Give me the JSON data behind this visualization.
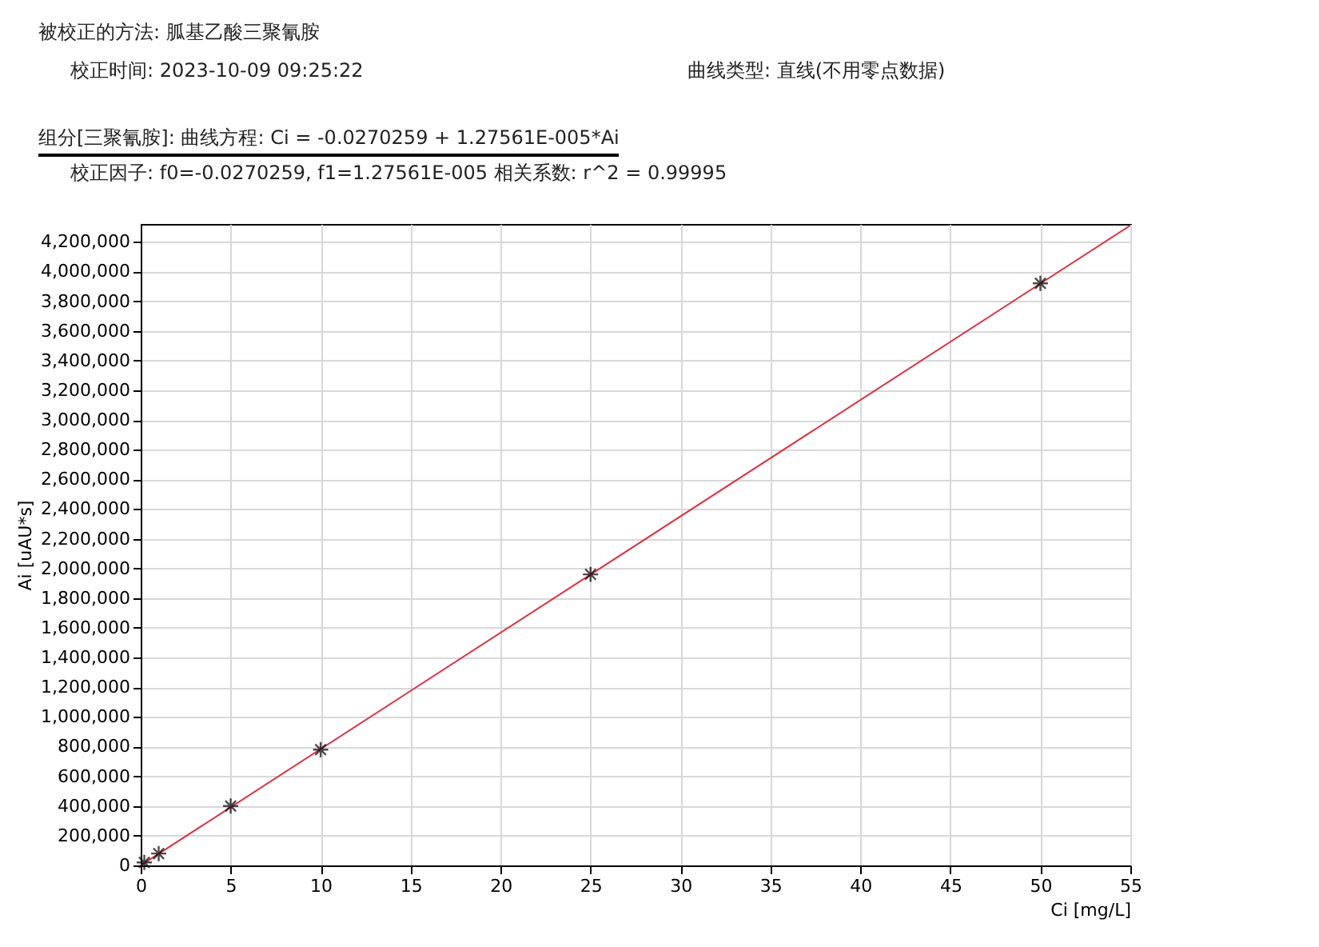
{
  "chart_data": {
    "type": "scatter",
    "title": "被校正的方法: 胍基乙酸三聚氰胺",
    "annotations": [
      "校正时间: 2023-10-09 09:25:22",
      "曲线类型: 直线(不用零点数据)",
      "组分[三聚氰胺]:  曲线方程: Ci = -0.0270259 + 1.27561E-005*Ai",
      "校正因子: f0=-0.0270259, f1=1.27561E-005   相关系数: r^2 = 0.99995"
    ],
    "xlabel": "Ci [mg/L]",
    "ylabel": "Ai [uAU*s]",
    "xlim": [
      0,
      55
    ],
    "xticks": [
      0,
      5,
      10,
      15,
      20,
      25,
      30,
      35,
      40,
      45,
      50,
      55
    ],
    "ylim": [
      0,
      4320000
    ],
    "yticks": [
      0,
      {
        "value": 200000,
        "label": "200,000"
      },
      {
        "value": 400000,
        "label": "400,000"
      },
      {
        "value": 600000,
        "label": "600,000"
      },
      {
        "value": 800000,
        "label": "800,000"
      },
      {
        "value": 1000000,
        "label": "1,000,000"
      },
      {
        "value": 1200000,
        "label": "1,200,000"
      },
      {
        "value": 1400000,
        "label": "1,400,000"
      },
      {
        "value": 1600000,
        "label": "1,600,000"
      },
      {
        "value": 1800000,
        "label": "1,800,000"
      },
      {
        "value": 2000000,
        "label": "2,000,000"
      },
      {
        "value": 2200000,
        "label": "2,200,000"
      },
      {
        "value": 2400000,
        "label": "2,400,000"
      },
      {
        "value": 2600000,
        "label": "2,600,000"
      },
      {
        "value": 2800000,
        "label": "2,800,000"
      },
      {
        "value": 3000000,
        "label": "3,000,000"
      },
      {
        "value": 3200000,
        "label": "3,200,000"
      },
      {
        "value": 3400000,
        "label": "3,400,000"
      },
      {
        "value": 3600000,
        "label": "3,600,000"
      },
      {
        "value": 3800000,
        "label": "3,800,000"
      },
      {
        "value": 4000000,
        "label": "4,000,000"
      },
      {
        "value": 4200000,
        "label": "4,200,000"
      }
    ],
    "grid": true,
    "marker": "cross",
    "series": [
      {
        "type": "line",
        "color": "#e03040",
        "marker": "none",
        "x": [
          0,
          55
        ],
        "values": [
          0,
          4310000
        ]
      },
      {
        "color": "#000000",
        "x": [
          0.2,
          1,
          5,
          10,
          25,
          50
        ],
        "values": [
          20000,
          80000,
          400000,
          780000,
          1960000,
          3920000
        ]
      }
    ]
  }
}
